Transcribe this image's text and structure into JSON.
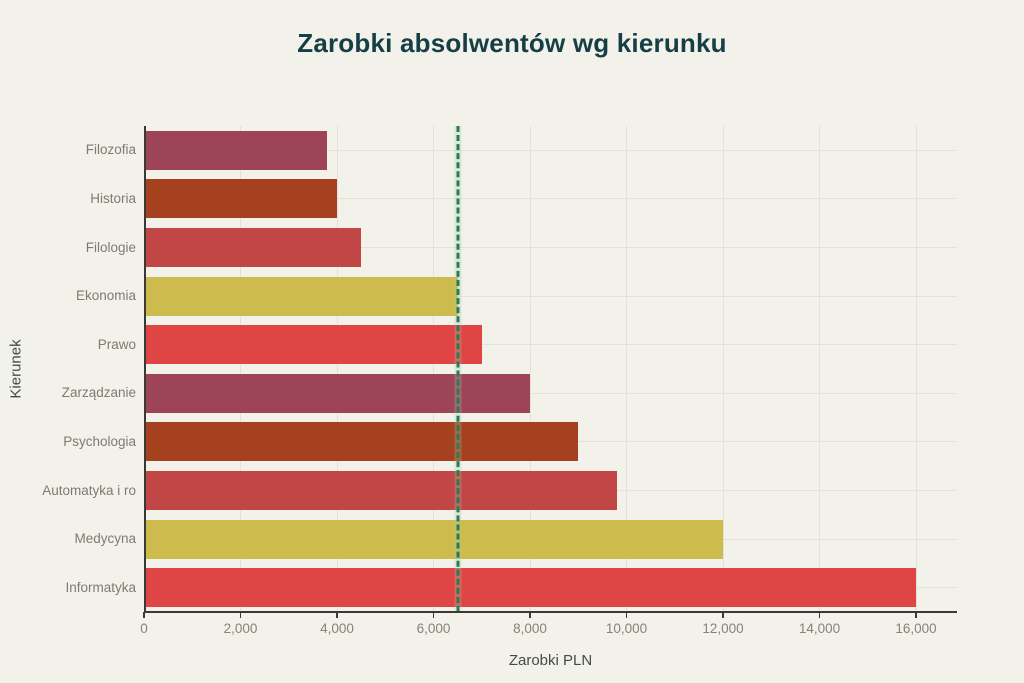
{
  "page": {
    "background_color": "#F2F1EA"
  },
  "chart_data": {
    "type": "bar",
    "orientation": "horizontal",
    "title": "Zarobki absolwentów wg kierunku",
    "xlabel": "Zarobki PLN",
    "ylabel": "Kierunek",
    "categories": [
      "Filozofia",
      "Historia",
      "Filologie",
      "Ekonomia",
      "Prawo",
      "Zarządzanie",
      "Psychologia",
      "Automatyka i ro",
      "Medycyna",
      "Informatyka"
    ],
    "values": [
      3800,
      4000,
      4500,
      6500,
      7000,
      8000,
      9000,
      9800,
      12000,
      16000
    ],
    "bar_colors": [
      "#9E4459",
      "#A64120",
      "#C24646",
      "#CDBB4D",
      "#DF4545",
      "#9E4459",
      "#A64120",
      "#C24646",
      "#CDBB4D",
      "#DF4545"
    ],
    "xlim": [
      0,
      16850
    ],
    "xticks": [
      0,
      2000,
      4000,
      6000,
      8000,
      10000,
      12000,
      14000,
      16000
    ],
    "xtick_labels": [
      "0",
      "2,000",
      "4,000",
      "6,000",
      "8,000",
      "10,000",
      "12,000",
      "14,000",
      "16,000"
    ],
    "grid": true,
    "legend": false,
    "reference_line": {
      "value": 6500,
      "style": "dashed",
      "color": "#2C7A50"
    }
  },
  "style": {
    "title_color": "#163F45",
    "grid_color": "#E3E2DA",
    "spine_color": "#3A3A35",
    "tick_label_color": "#84847B",
    "axis_title_color": "#474B45"
  }
}
